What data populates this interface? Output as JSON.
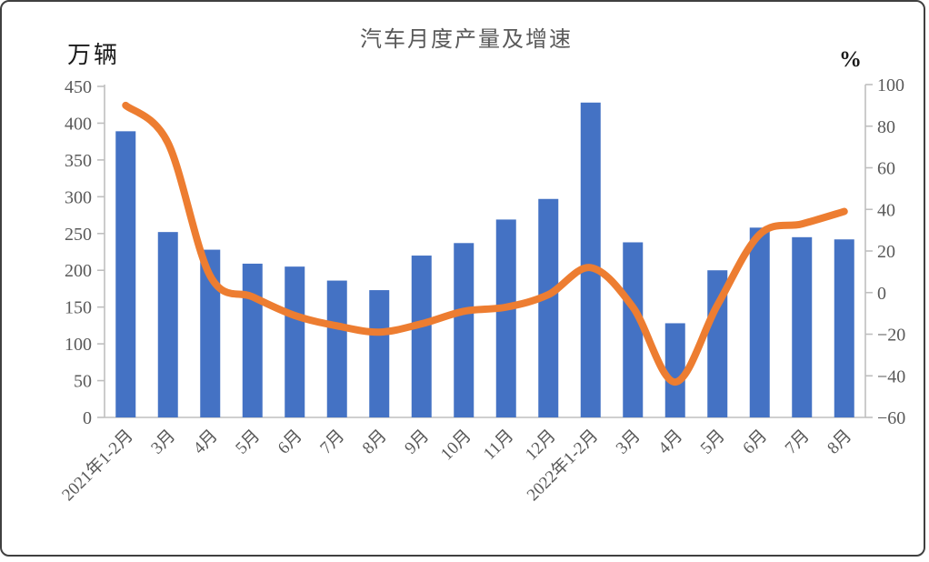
{
  "chart": {
    "background": "#FFFFFF",
    "frame_border_color": "#404040",
    "axis_line_color": "#BFBFBF",
    "tick_text_color": "#595959",
    "title_color": "#595959"
  },
  "chart_data": {
    "type": "combo_bar_line",
    "title": "汽车月度产量及增速",
    "left_ylabel": "万辆",
    "right_ylabel": "%",
    "categories": [
      "2021年1-2月",
      "3月",
      "4月",
      "5月",
      "6月",
      "7月",
      "8月",
      "9月",
      "10月",
      "11月",
      "12月",
      "2022年1-2月",
      "3月",
      "4月",
      "5月",
      "6月",
      "7月",
      "8月"
    ],
    "series": [
      {
        "name": "月度产量",
        "type": "bar",
        "axis": "left",
        "color": "#4472C4",
        "values": [
          389,
          252,
          228,
          209,
          205,
          186,
          173,
          220,
          237,
          269,
          297,
          428,
          238,
          128,
          200,
          258,
          245,
          242
        ]
      },
      {
        "name": "增速",
        "type": "line",
        "axis": "right",
        "color": "#ED7D31",
        "smooth": true,
        "values": [
          90,
          72,
          8,
          -2,
          -11,
          -16,
          -19,
          -15,
          -9,
          -7,
          -1,
          12,
          -7,
          -43,
          -6,
          28,
          33,
          39
        ]
      }
    ],
    "left_axis": {
      "min": 0,
      "max": 450,
      "step": 50,
      "ticks": [
        "450",
        "400",
        "350",
        "300",
        "250",
        "200",
        "150",
        "100",
        "50",
        "0"
      ]
    },
    "right_axis": {
      "min": -60,
      "max": 100,
      "step": 20,
      "ticks": [
        "100",
        "80",
        "60",
        "40",
        "20",
        "0",
        "−20",
        "−40",
        "−60"
      ]
    },
    "grid": false,
    "legend": "none"
  }
}
